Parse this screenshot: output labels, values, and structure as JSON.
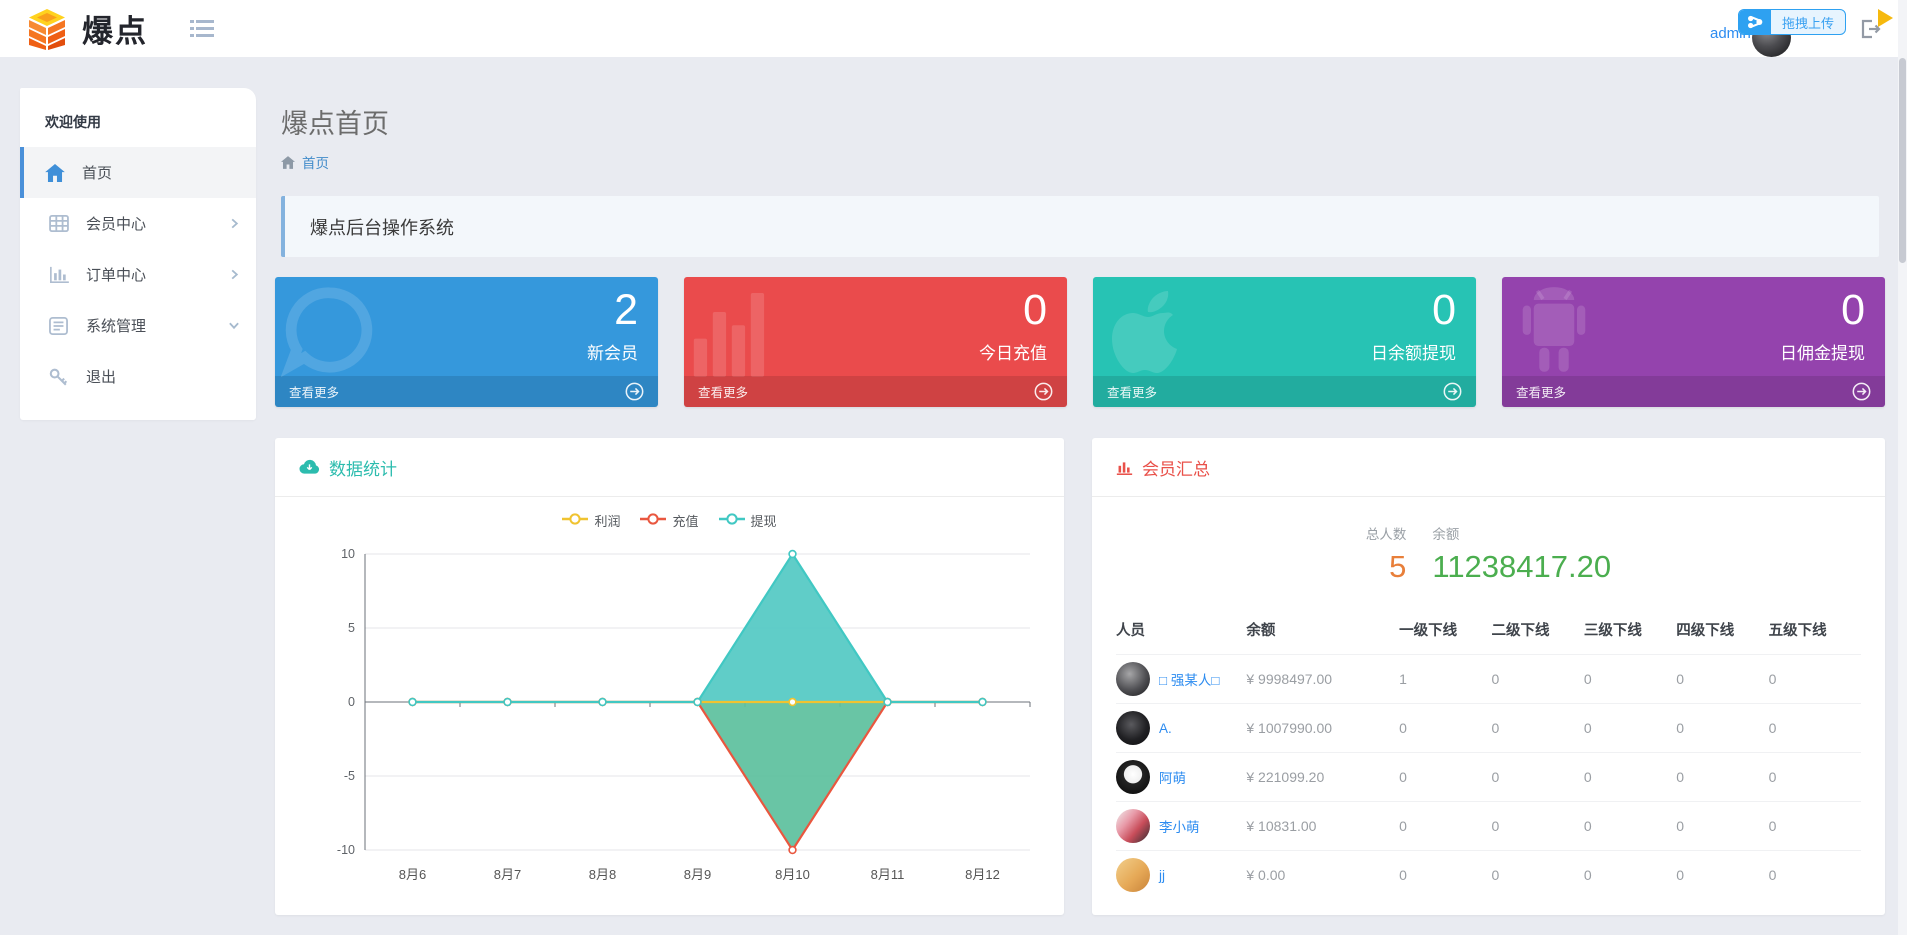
{
  "header": {
    "brand": "爆点",
    "upload_badge": "拖拽上传",
    "username": "admin"
  },
  "sidebar": {
    "welcome": "欢迎使用",
    "items": [
      {
        "label": "首页",
        "icon": "home-icon",
        "active": true,
        "chevron": "none"
      },
      {
        "label": "会员中心",
        "icon": "grid-icon",
        "active": false,
        "chevron": "right"
      },
      {
        "label": "订单中心",
        "icon": "bar-chart-icon",
        "active": false,
        "chevron": "right"
      },
      {
        "label": "系统管理",
        "icon": "list-icon",
        "active": false,
        "chevron": "down"
      },
      {
        "label": "退出",
        "icon": "key-icon",
        "active": false,
        "chevron": "none"
      }
    ]
  },
  "page": {
    "title": "爆点首页",
    "breadcrumb_home": "首页",
    "notice": "爆点后台操作系统"
  },
  "stat_cards": [
    {
      "value": "2",
      "label": "新会员",
      "more": "查看更多",
      "color": "#3598dc",
      "watermark": "comment-icon"
    },
    {
      "value": "0",
      "label": "今日充值",
      "more": "查看更多",
      "color": "#ea4b4c",
      "watermark": "bars-icon"
    },
    {
      "value": "0",
      "label": "日余额提现",
      "more": "查看更多",
      "color": "#27c3b4",
      "watermark": "apple-icon"
    },
    {
      "value": "0",
      "label": "日佣金提现",
      "more": "查看更多",
      "color": "#9443ad",
      "watermark": "android-icon"
    }
  ],
  "stats_panel": {
    "title": "数据统计",
    "accent": "#2cbcae"
  },
  "members_panel": {
    "title": "会员汇总",
    "accent": "#e95049",
    "total_label": "总人数",
    "total_value": "5",
    "balance_label": "余额",
    "balance_value": "11238417.20",
    "table": {
      "headers": [
        "人员",
        "余额",
        "一级下线",
        "二级下线",
        "三级下线",
        "四级下线",
        "五级下线"
      ],
      "rows": [
        {
          "name": "□ 强某人□",
          "balance": "¥ 9998497.00",
          "downlines": [
            "1",
            "0",
            "0",
            "0",
            "0"
          ]
        },
        {
          "name": "A.",
          "balance": "¥ 1007990.00",
          "downlines": [
            "0",
            "0",
            "0",
            "0",
            "0"
          ]
        },
        {
          "name": "阿萌",
          "balance": "¥ 221099.20",
          "downlines": [
            "0",
            "0",
            "0",
            "0",
            "0"
          ]
        },
        {
          "name": "李小萌",
          "balance": "¥ 10831.00",
          "downlines": [
            "0",
            "0",
            "0",
            "0",
            "0"
          ]
        },
        {
          "name": "jj",
          "balance": "¥ 0.00",
          "downlines": [
            "0",
            "0",
            "0",
            "0",
            "0"
          ]
        }
      ]
    }
  },
  "chart_data": {
    "type": "line",
    "categories": [
      "8月6",
      "8月7",
      "8月8",
      "8月9",
      "8月10",
      "8月11",
      "8月12"
    ],
    "series": [
      {
        "name": "利润",
        "color": "#f0c330",
        "values": [
          0,
          0,
          0,
          0,
          0,
          0,
          0
        ]
      },
      {
        "name": "充值",
        "color": "#e9573f",
        "area_color": "rgba(92,192,157,0.92)",
        "values": [
          0,
          0,
          0,
          0,
          -10,
          0,
          0
        ]
      },
      {
        "name": "提现",
        "color": "#41c8c3",
        "area_color": "rgba(82,201,195,0.92)",
        "values": [
          0,
          0,
          0,
          0,
          10,
          0,
          0
        ]
      }
    ],
    "ylim": [
      -10,
      10
    ],
    "yticks": [
      10,
      5,
      0,
      -5,
      -10
    ],
    "grid": true,
    "legend_position": "top-center",
    "xlabel": "",
    "ylabel": "",
    "title": "数据统计"
  }
}
